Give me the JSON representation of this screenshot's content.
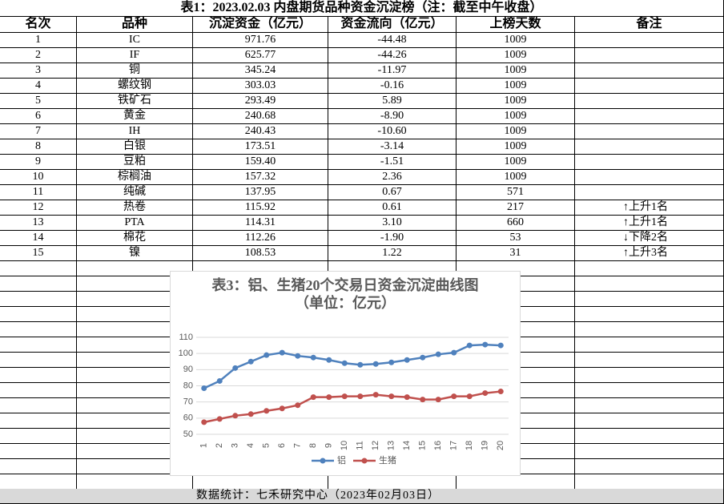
{
  "table": {
    "title": "表1：2023.02.03 内盘期货品种资金沉淀榜（注：截至中午收盘）",
    "header": [
      "名次",
      "品种",
      "沉淀资金（亿元）",
      "资金流向（亿元）",
      "上榜天数",
      "备注"
    ],
    "rows": [
      [
        "1",
        "IC",
        "971.76",
        "-44.48",
        "1009",
        ""
      ],
      [
        "2",
        "IF",
        "625.77",
        "-44.26",
        "1009",
        ""
      ],
      [
        "3",
        "铜",
        "345.24",
        "-11.97",
        "1009",
        ""
      ],
      [
        "4",
        "螺纹钢",
        "303.03",
        "-0.16",
        "1009",
        ""
      ],
      [
        "5",
        "铁矿石",
        "293.49",
        "5.89",
        "1009",
        ""
      ],
      [
        "6",
        "黄金",
        "240.68",
        "-8.90",
        "1009",
        ""
      ],
      [
        "7",
        "IH",
        "240.43",
        "-10.60",
        "1009",
        ""
      ],
      [
        "8",
        "白银",
        "173.51",
        "-3.14",
        "1009",
        ""
      ],
      [
        "9",
        "豆粕",
        "159.40",
        "-1.51",
        "1009",
        ""
      ],
      [
        "10",
        "棕榈油",
        "157.32",
        "2.36",
        "1009",
        ""
      ],
      [
        "11",
        "纯碱",
        "137.95",
        "0.67",
        "571",
        ""
      ],
      [
        "12",
        "热卷",
        "115.92",
        "0.61",
        "217",
        "↑上升1名"
      ],
      [
        "13",
        "PTA",
        "114.31",
        "3.10",
        "660",
        "↑上升1名"
      ],
      [
        "14",
        "棉花",
        "112.26",
        "-1.90",
        "53",
        "↓下降2名"
      ],
      [
        "15",
        "镍",
        "108.53",
        "1.22",
        "31",
        "↑上升3名"
      ]
    ],
    "footer": "数据统计：七禾研究中心（2023年02月03日）"
  },
  "chart_data": {
    "type": "line",
    "title": "表3：铝、生猪20个交易日资金沉淀曲线图（单位：亿元）",
    "categories": [
      "1",
      "2",
      "3",
      "4",
      "5",
      "6",
      "7",
      "8",
      "9",
      "10",
      "11",
      "12",
      "13",
      "14",
      "15",
      "16",
      "17",
      "18",
      "19",
      "20"
    ],
    "series": [
      {
        "name": "铝",
        "color": "#4f81bd",
        "values": [
          78.5,
          83,
          91,
          95,
          99,
          100.5,
          98.5,
          97.5,
          96,
          94,
          93,
          93.5,
          94.5,
          96,
          97.5,
          99.5,
          100.5,
          105,
          105.5,
          105
        ]
      },
      {
        "name": "生猪",
        "color": "#c0504d",
        "values": [
          57.5,
          59.5,
          61.5,
          62.5,
          64.5,
          66,
          68,
          73,
          73,
          73.5,
          73.5,
          74.5,
          73.5,
          73,
          71.5,
          71.5,
          73.5,
          73.5,
          75.5,
          76.5
        ]
      }
    ],
    "ylim": [
      50,
      110
    ],
    "yticks": [
      50,
      60,
      70,
      80,
      90,
      100,
      110
    ],
    "grid": true,
    "legend": "bottom"
  }
}
